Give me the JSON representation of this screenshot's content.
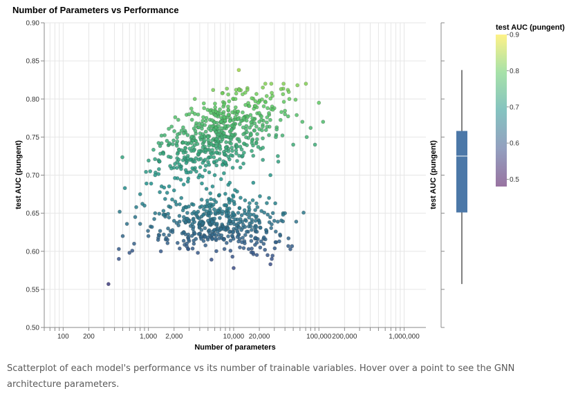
{
  "chart_data": {
    "type": "scatter",
    "title": "Number of Parameters vs Performance",
    "xlabel": "Number of parameters",
    "ylabel": "test AUC (pungent)",
    "x_scale": "log",
    "xlim": [
      60,
      1800000
    ],
    "ylim": [
      0.5,
      0.9
    ],
    "x_tick_labels": [
      "100",
      "200",
      "1,000",
      "2,000",
      "10,000",
      "20,000",
      "100,000",
      "200,000",
      "1,000,000"
    ],
    "y_tick_labels": [
      "0.50",
      "0.55",
      "0.60",
      "0.65",
      "0.70",
      "0.75",
      "0.80",
      "0.85",
      "0.90"
    ],
    "grid": true,
    "color_encoding": {
      "field": "test AUC (pungent)",
      "legend_title": "test AUC (pungent)",
      "domain": [
        0.48,
        0.9
      ],
      "legend_labels": [
        "0.9",
        "0.8",
        "0.7",
        "0.6",
        "0.5"
      ],
      "scheme": "viridis",
      "colors": [
        "#440154",
        "#3b528b",
        "#21918c",
        "#5ec962",
        "#fde725"
      ]
    },
    "points_note": "approximately 1,000 models; values estimated from the figure",
    "points": [
      [
        340,
        0.557
      ],
      [
        10000,
        0.578
      ],
      [
        450,
        0.59
      ],
      [
        450,
        0.603
      ],
      [
        600,
        0.598
      ],
      [
        680,
        0.61
      ],
      [
        1400,
        0.6
      ],
      [
        3800,
        0.598
      ],
      [
        7800,
        0.603
      ],
      [
        25000,
        0.595
      ],
      [
        27000,
        0.583
      ],
      [
        28000,
        0.59
      ],
      [
        500,
        0.62
      ],
      [
        560,
        0.636
      ],
      [
        700,
        0.645
      ],
      [
        800,
        0.636
      ],
      [
        900,
        0.66
      ],
      [
        1000,
        0.62
      ],
      [
        1100,
        0.632
      ],
      [
        1200,
        0.65
      ],
      [
        1300,
        0.615
      ],
      [
        1500,
        0.648
      ],
      [
        1700,
        0.63
      ],
      [
        2000,
        0.64
      ],
      [
        2200,
        0.611
      ],
      [
        2600,
        0.625
      ],
      [
        3000,
        0.64
      ],
      [
        3400,
        0.614
      ],
      [
        4200,
        0.628
      ],
      [
        5000,
        0.64
      ],
      [
        5600,
        0.616
      ],
      [
        6500,
        0.63
      ],
      [
        7200,
        0.621
      ],
      [
        8200,
        0.65
      ],
      [
        9200,
        0.614
      ],
      [
        11000,
        0.627
      ],
      [
        12500,
        0.612
      ],
      [
        14000,
        0.64
      ],
      [
        16000,
        0.62
      ],
      [
        18500,
        0.632
      ],
      [
        21000,
        0.613
      ],
      [
        24000,
        0.628
      ],
      [
        30000,
        0.64
      ],
      [
        35000,
        0.622
      ],
      [
        40000,
        0.65
      ],
      [
        460,
        0.652
      ],
      [
        530,
        0.683
      ],
      [
        720,
        0.658
      ],
      [
        800,
        0.675
      ],
      [
        950,
        0.689
      ],
      [
        1050,
        0.705
      ],
      [
        1200,
        0.7
      ],
      [
        1350,
        0.718
      ],
      [
        1500,
        0.728
      ],
      [
        1650,
        0.745
      ],
      [
        1800,
        0.712
      ],
      [
        2000,
        0.68
      ],
      [
        2300,
        0.733
      ],
      [
        2600,
        0.755
      ],
      [
        2900,
        0.722
      ],
      [
        3200,
        0.742
      ],
      [
        3600,
        0.765
      ],
      [
        4000,
        0.7
      ],
      [
        4500,
        0.788
      ],
      [
        5000,
        0.75
      ],
      [
        5600,
        0.772
      ],
      [
        6200,
        0.738
      ],
      [
        7000,
        0.781
      ],
      [
        7800,
        0.728
      ],
      [
        8600,
        0.79
      ],
      [
        9500,
        0.765
      ],
      [
        10500,
        0.8
      ],
      [
        11500,
        0.838
      ],
      [
        13000,
        0.775
      ],
      [
        14500,
        0.812
      ],
      [
        16000,
        0.753
      ],
      [
        18000,
        0.797
      ],
      [
        20000,
        0.77
      ],
      [
        22000,
        0.815
      ],
      [
        25000,
        0.788
      ],
      [
        28000,
        0.808
      ],
      [
        32000,
        0.76
      ],
      [
        36000,
        0.813
      ],
      [
        40000,
        0.78
      ],
      [
        45000,
        0.8
      ],
      [
        50000,
        0.74
      ],
      [
        56000,
        0.818
      ],
      [
        64000,
        0.77
      ],
      [
        72000,
        0.75
      ],
      [
        80000,
        0.762
      ],
      [
        90000,
        0.74
      ],
      [
        100000,
        0.795
      ],
      [
        112000,
        0.77
      ],
      [
        3000,
        0.78
      ],
      [
        3500,
        0.8
      ],
      [
        6000,
        0.7
      ],
      [
        9000,
        0.69
      ],
      [
        12000,
        0.71
      ],
      [
        17000,
        0.69
      ],
      [
        22000,
        0.72
      ],
      [
        27000,
        0.7
      ],
      [
        33000,
        0.725
      ],
      [
        1900,
        0.668
      ],
      [
        2400,
        0.694
      ],
      [
        4800,
        0.682
      ],
      [
        5200,
        0.66
      ],
      [
        6800,
        0.674
      ],
      [
        10200,
        0.662
      ],
      [
        13500,
        0.65
      ],
      [
        19000,
        0.658
      ],
      [
        26000,
        0.67
      ],
      [
        38000,
        0.648
      ],
      [
        15000,
        0.603
      ],
      [
        20500,
        0.605
      ],
      [
        31000,
        0.612
      ],
      [
        44000,
        0.617
      ]
    ]
  },
  "boxplot": {
    "axis_label": "test AUC (pungent)",
    "min": 0.557,
    "q1": 0.651,
    "median": 0.725,
    "q3": 0.758,
    "max": 0.838,
    "color": "#4c78a8"
  },
  "caption": "Scatterplot of each model's performance vs its number of trainable variables. Hover over a point to see the GNN architecture parameters."
}
